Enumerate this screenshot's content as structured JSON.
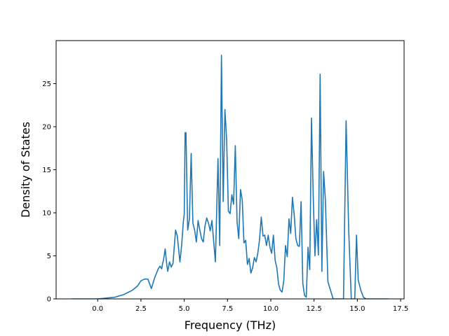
{
  "chart_data": {
    "type": "line",
    "title": "",
    "xlabel": "Frequency (THz)",
    "ylabel": "Density of States",
    "xlim": [
      -2.4,
      17.7
    ],
    "ylim": [
      0,
      30
    ],
    "xticks": [
      0.0,
      2.5,
      5.0,
      7.5,
      10.0,
      12.5,
      15.0,
      17.5
    ],
    "xtick_labels": [
      "0.0",
      "2.5",
      "5.0",
      "7.5",
      "10.0",
      "12.5",
      "15.0",
      "17.5"
    ],
    "yticks": [
      0,
      5,
      10,
      15,
      20,
      25
    ],
    "ytick_labels": [
      "0",
      "5",
      "10",
      "15",
      "20",
      "25"
    ],
    "grid": false,
    "series": [
      {
        "color": "#1f77b4",
        "x": [
          -1.5,
          -1.0,
          0.0,
          0.5,
          1.0,
          1.5,
          2.0,
          2.3,
          2.5,
          2.7,
          2.9,
          3.1,
          3.3,
          3.5,
          3.6,
          3.7,
          3.75,
          3.8,
          3.9,
          4.0,
          4.05,
          4.15,
          4.25,
          4.35,
          4.5,
          4.6,
          4.75,
          4.85,
          4.95,
          5.0,
          5.05,
          5.1,
          5.2,
          5.3,
          5.4,
          5.5,
          5.6,
          5.7,
          5.8,
          5.9,
          6.0,
          6.1,
          6.2,
          6.3,
          6.4,
          6.5,
          6.6,
          6.7,
          6.8,
          6.95,
          7.05,
          7.15,
          7.25,
          7.35,
          7.45,
          7.55,
          7.65,
          7.75,
          7.85,
          7.95,
          8.05,
          8.15,
          8.25,
          8.35,
          8.45,
          8.55,
          8.65,
          8.75,
          8.85,
          8.95,
          9.05,
          9.15,
          9.25,
          9.35,
          9.45,
          9.55,
          9.65,
          9.75,
          9.85,
          9.95,
          10.05,
          10.15,
          10.25,
          10.35,
          10.45,
          10.55,
          10.65,
          10.75,
          10.85,
          10.95,
          11.05,
          11.15,
          11.25,
          11.35,
          11.45,
          11.55,
          11.65,
          11.75,
          11.85,
          11.95,
          12.05,
          12.15,
          12.25,
          12.35,
          12.45,
          12.55,
          12.65,
          12.75,
          12.85,
          12.95,
          13.05,
          13.15,
          13.3,
          13.6,
          13.9,
          14.0,
          14.1,
          14.2,
          14.35,
          14.5,
          14.65,
          14.75,
          14.85,
          14.95,
          15.05,
          15.2,
          15.35,
          15.5,
          16.0,
          16.8
        ],
        "y": [
          0,
          0,
          0,
          0.1,
          0.2,
          0.5,
          1.0,
          1.5,
          2.1,
          2.3,
          2.3,
          1.2,
          2.5,
          3.5,
          3.8,
          3.5,
          4.1,
          4.5,
          5.8,
          3.8,
          3.2,
          4.3,
          3.7,
          4.1,
          8.0,
          7.3,
          4.3,
          6.2,
          9.0,
          9.8,
          19.3,
          19.3,
          8.0,
          9.3,
          16.9,
          8.8,
          8.0,
          6.6,
          9.1,
          8.0,
          7.0,
          6.6,
          8.5,
          9.4,
          8.8,
          7.9,
          9.1,
          6.7,
          4.3,
          16.3,
          6.2,
          28.3,
          11.3,
          22.0,
          18.5,
          10.2,
          9.9,
          12.1,
          11.0,
          17.8,
          9.0,
          7.0,
          12.7,
          11.5,
          6.5,
          6.8,
          4.0,
          4.7,
          3.0,
          3.6,
          4.8,
          4.3,
          5.3,
          6.9,
          9.5,
          7.3,
          7.4,
          6.2,
          7.4,
          6.0,
          5.3,
          7.4,
          4.5,
          3.6,
          1.7,
          1.0,
          0.8,
          2.1,
          6.2,
          4.9,
          9.3,
          7.6,
          11.8,
          9.8,
          7.0,
          6.2,
          6.1,
          11.3,
          1.8,
          0.4,
          0.2,
          6.0,
          3.4,
          21.0,
          12.0,
          5.0,
          9.2,
          5.1,
          26.1,
          3.2,
          14.8,
          11.6,
          2.0,
          0,
          0,
          0,
          0,
          0,
          20.7,
          8.0,
          0,
          0,
          0,
          7.4,
          2.2,
          1.0,
          0.2,
          0,
          0,
          0
        ]
      }
    ]
  }
}
